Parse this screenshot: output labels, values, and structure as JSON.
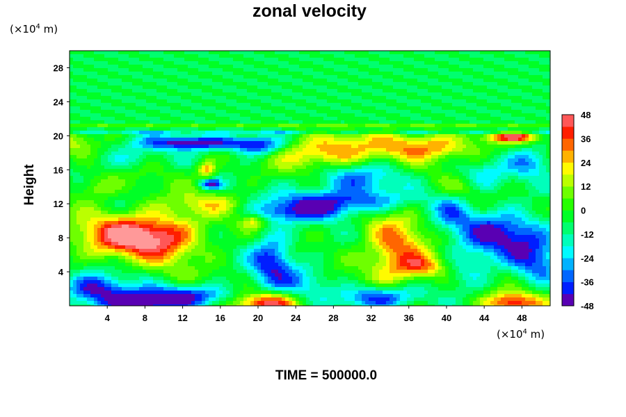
{
  "chart_data": {
    "type": "heatmap",
    "title": "zonal velocity",
    "xlabel": "",
    "ylabel": "Height",
    "x_unit_prefix": "(×10",
    "x_unit_exp": "4",
    "x_unit_suffix": " m)",
    "y_unit_prefix": "(×10",
    "y_unit_exp": "4",
    "y_unit_suffix": " m)",
    "xlim": [
      0,
      51
    ],
    "ylim": [
      0,
      30
    ],
    "x_ticks": [
      4,
      8,
      12,
      16,
      20,
      24,
      28,
      32,
      36,
      40,
      44,
      48
    ],
    "y_ticks": [
      4,
      8,
      12,
      16,
      20,
      24,
      28
    ],
    "colorbar": {
      "min": -48,
      "max": 48,
      "step": 6,
      "ticks": [
        -48,
        -36,
        -24,
        -12,
        0,
        12,
        24,
        36,
        48
      ]
    },
    "features": [
      {
        "x": 6.0,
        "y": 8.2,
        "v": 48,
        "sx": 3.6,
        "sy": 1.7
      },
      {
        "x": 10.5,
        "y": 8.0,
        "v": 26,
        "sx": 2.8,
        "sy": 2.2
      },
      {
        "x": 21.0,
        "y": 0.3,
        "v": 48,
        "sx": 2.4,
        "sy": 0.9
      },
      {
        "x": 34.5,
        "y": 6.5,
        "v": 36,
        "sx": 2.2,
        "sy": 2.8
      },
      {
        "x": 37.5,
        "y": 4.6,
        "v": 30,
        "sx": 1.8,
        "sy": 1.0
      },
      {
        "x": 47.0,
        "y": 0.3,
        "v": 46,
        "sx": 2.2,
        "sy": 0.9
      },
      {
        "x": 27.5,
        "y": 18.0,
        "v": 36,
        "sx": 3.5,
        "sy": 1.5
      },
      {
        "x": 38.0,
        "y": 18.7,
        "v": 32,
        "sx": 4.0,
        "sy": 1.1
      },
      {
        "x": 47.0,
        "y": 19.8,
        "v": 40,
        "sx": 2.0,
        "sy": 0.4
      },
      {
        "x": 14.5,
        "y": 16.0,
        "v": 32,
        "sx": 0.7,
        "sy": 0.7
      },
      {
        "x": 19.5,
        "y": 10.0,
        "v": 22,
        "sx": 0.9,
        "sy": 0.6
      },
      {
        "x": 15.5,
        "y": 12.0,
        "v": 18,
        "sx": 3.5,
        "sy": 0.9
      },
      {
        "x": 42.0,
        "y": 14.0,
        "v": 16,
        "sx": 1.6,
        "sy": 1.0
      },
      {
        "x": 3.0,
        "y": 14.0,
        "v": 18,
        "sx": 1.5,
        "sy": 1.0
      },
      {
        "x": 0.5,
        "y": 19.0,
        "v": 14,
        "sx": 1.5,
        "sy": 1.0
      },
      {
        "x": 7.0,
        "y": 0.2,
        "v": -48,
        "sx": 3.0,
        "sy": 1.0
      },
      {
        "x": 2.5,
        "y": 2.0,
        "v": -40,
        "sx": 2.5,
        "sy": 1.2
      },
      {
        "x": 13.0,
        "y": 1.2,
        "v": -36,
        "sx": 3.5,
        "sy": 0.9
      },
      {
        "x": 33.0,
        "y": 1.0,
        "v": -42,
        "sx": 3.0,
        "sy": 1.0
      },
      {
        "x": 21.5,
        "y": 5.5,
        "v": -38,
        "sx": 1.6,
        "sy": 2.3
      },
      {
        "x": 46.0,
        "y": 8.5,
        "v": -40,
        "sx": 3.5,
        "sy": 2.0
      },
      {
        "x": 49.5,
        "y": 5.0,
        "v": -26,
        "sx": 2.0,
        "sy": 2.0
      },
      {
        "x": 13.5,
        "y": 19.2,
        "v": -46,
        "sx": 4.0,
        "sy": 0.6
      },
      {
        "x": 20.0,
        "y": 18.8,
        "v": -38,
        "sx": 1.8,
        "sy": 0.8
      },
      {
        "x": 15.0,
        "y": 14.3,
        "v": -42,
        "sx": 0.8,
        "sy": 0.4
      },
      {
        "x": 28.0,
        "y": 12.3,
        "v": -36,
        "sx": 5.0,
        "sy": 0.9
      },
      {
        "x": 30.0,
        "y": 15.0,
        "v": -28,
        "sx": 3.5,
        "sy": 1.5
      },
      {
        "x": 24.5,
        "y": 11.0,
        "v": -30,
        "sx": 4.0,
        "sy": 0.8
      },
      {
        "x": 43.5,
        "y": 15.0,
        "v": -22,
        "sx": 2.0,
        "sy": 1.3
      },
      {
        "x": 49.0,
        "y": 17.0,
        "v": -26,
        "sx": 1.8,
        "sy": 1.3
      },
      {
        "x": 40.5,
        "y": 11.0,
        "v": -20,
        "sx": 1.5,
        "sy": 1.5
      },
      {
        "x": 6.0,
        "y": 17.5,
        "v": -16,
        "sx": 2.5,
        "sy": 1.0
      },
      {
        "x": 25.0,
        "y": 3.0,
        "v": -20,
        "sx": 2.0,
        "sy": 1.5
      },
      {
        "x": 42.5,
        "y": 4.5,
        "v": -18,
        "sx": 1.8,
        "sy": 1.5
      }
    ]
  },
  "footer": {
    "time_label": "TIME = 500000.0"
  }
}
